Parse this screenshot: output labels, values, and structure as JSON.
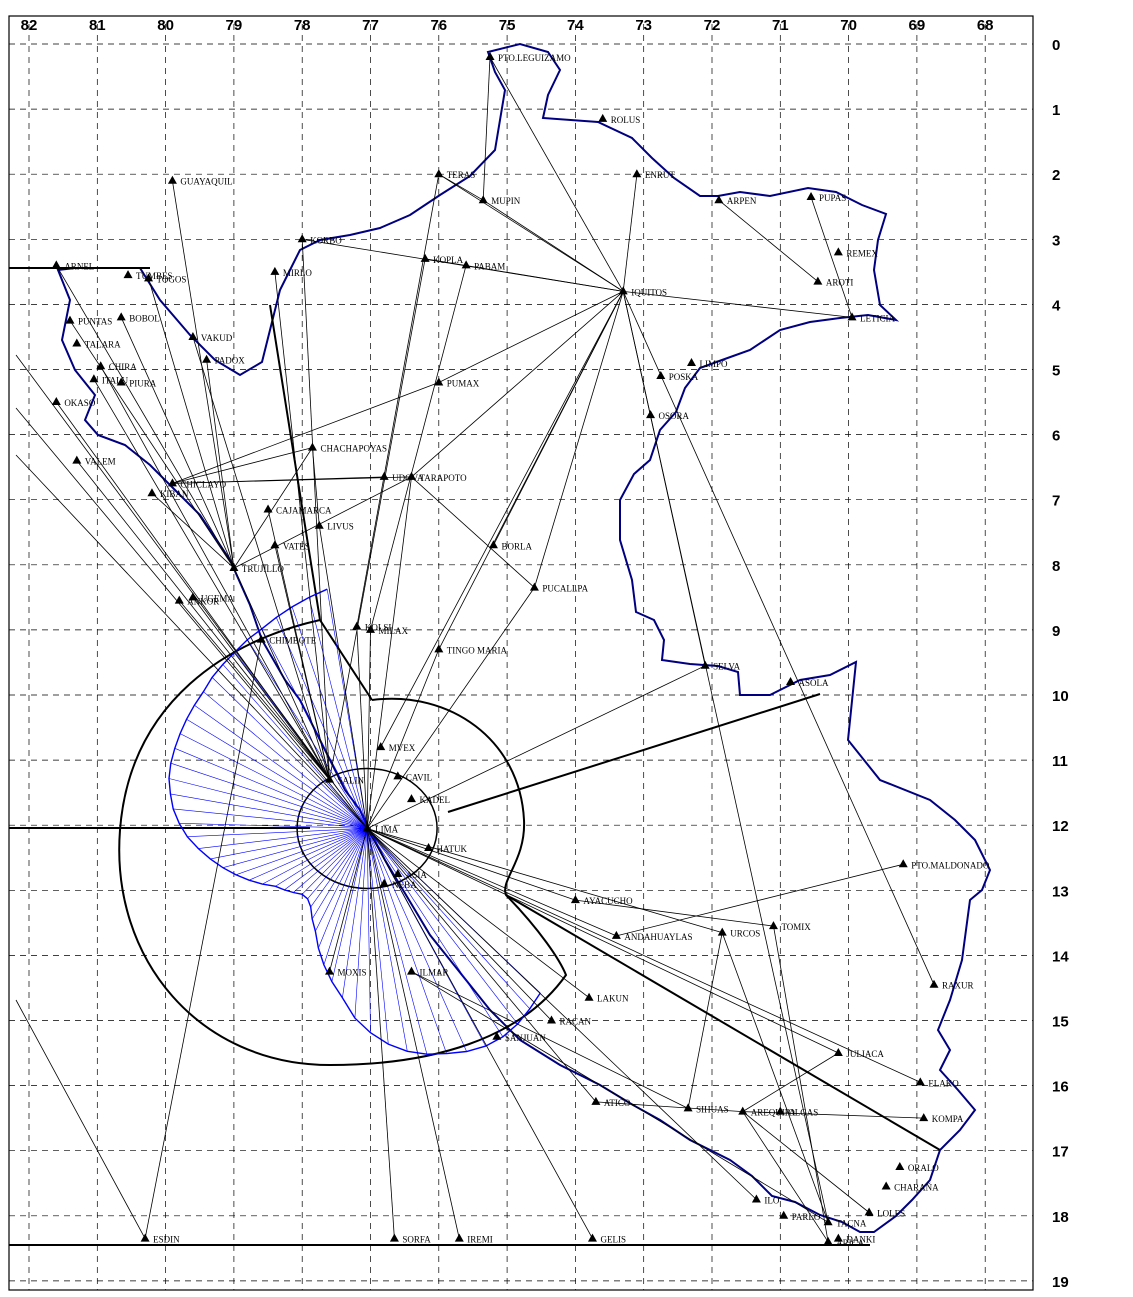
{
  "map": {
    "lon_axis": {
      "labels": [
        "82",
        "81",
        "80",
        "79",
        "78",
        "77",
        "76",
        "75",
        "74",
        "73",
        "72",
        "71",
        "70",
        "69",
        "68"
      ],
      "range": [
        82,
        68
      ]
    },
    "lat_axis": {
      "labels": [
        "0",
        "1",
        "2",
        "3",
        "4",
        "5",
        "6",
        "7",
        "8",
        "9",
        "10",
        "11",
        "12",
        "13",
        "14",
        "15",
        "16",
        "17",
        "18",
        "19"
      ],
      "range": [
        0,
        19
      ]
    },
    "grid": true,
    "colors": {
      "border": "#000080",
      "rose": "#0000ff",
      "lines": "#000000",
      "grid": "#000000"
    },
    "hub": "LIMA",
    "stations": [
      {
        "name": "PTO.LEGUIZAMO",
        "lon": 75.25,
        "lat": 0.2
      },
      {
        "name": "ROLUS",
        "lon": 73.6,
        "lat": 1.15
      },
      {
        "name": "TERAS",
        "lon": 76.0,
        "lat": 2.0
      },
      {
        "name": "MUPIN",
        "lon": 75.35,
        "lat": 2.4
      },
      {
        "name": "ENRUT",
        "lon": 73.1,
        "lat": 2.0
      },
      {
        "name": "ARPEN",
        "lon": 71.9,
        "lat": 2.4
      },
      {
        "name": "PUPAS",
        "lon": 70.55,
        "lat": 2.35
      },
      {
        "name": "GUAYAQUIL",
        "lon": 79.9,
        "lat": 2.1
      },
      {
        "name": "KORBO",
        "lon": 78.0,
        "lat": 3.0
      },
      {
        "name": "KOPLA",
        "lon": 76.2,
        "lat": 3.3
      },
      {
        "name": "PABAM",
        "lon": 75.6,
        "lat": 3.4
      },
      {
        "name": "REMEX",
        "lon": 70.15,
        "lat": 3.2
      },
      {
        "name": "AROTI",
        "lon": 70.45,
        "lat": 3.65
      },
      {
        "name": "IQUITOS",
        "lon": 73.3,
        "lat": 3.8
      },
      {
        "name": "LETICIA",
        "lon": 69.95,
        "lat": 4.2
      },
      {
        "name": "ARNEL",
        "lon": 81.6,
        "lat": 3.4
      },
      {
        "name": "TUMBES",
        "lon": 80.55,
        "lat": 3.55
      },
      {
        "name": "TOGOS",
        "lon": 80.25,
        "lat": 3.6
      },
      {
        "name": "MIRLO",
        "lon": 78.4,
        "lat": 3.5
      },
      {
        "name": "PUNTAS",
        "lon": 81.4,
        "lat": 4.25
      },
      {
        "name": "BOBOL",
        "lon": 80.65,
        "lat": 4.2
      },
      {
        "name": "VAKUD",
        "lon": 79.6,
        "lat": 4.5
      },
      {
        "name": "TALARA",
        "lon": 81.3,
        "lat": 4.6
      },
      {
        "name": "CHIRA",
        "lon": 80.95,
        "lat": 4.95
      },
      {
        "name": "PADOX",
        "lon": 79.4,
        "lat": 4.85
      },
      {
        "name": "LIMPO",
        "lon": 72.3,
        "lat": 4.9
      },
      {
        "name": "PIURA",
        "lon": 80.65,
        "lat": 5.2
      },
      {
        "name": "POSKA",
        "lon": 72.75,
        "lat": 5.1
      },
      {
        "name": "PUMAX",
        "lon": 76.0,
        "lat": 5.2
      },
      {
        "name": "OKASO",
        "lon": 81.6,
        "lat": 5.5
      },
      {
        "name": "ITALU",
        "lon": 81.05,
        "lat": 5.15
      },
      {
        "name": "OSORA",
        "lon": 72.9,
        "lat": 5.7
      },
      {
        "name": "CHACHAPOYAS",
        "lon": 77.85,
        "lat": 6.2
      },
      {
        "name": "VALEM",
        "lon": 81.3,
        "lat": 6.4
      },
      {
        "name": "UDOVA",
        "lon": 76.8,
        "lat": 6.65
      },
      {
        "name": "TARAPOTO",
        "lon": 76.4,
        "lat": 6.65
      },
      {
        "name": "CHICLAYO",
        "lon": 79.9,
        "lat": 6.75
      },
      {
        "name": "KIBAN",
        "lon": 80.2,
        "lat": 6.9
      },
      {
        "name": "CAJAMARCA",
        "lon": 78.5,
        "lat": 7.15
      },
      {
        "name": "LIVUS",
        "lon": 77.75,
        "lat": 7.4
      },
      {
        "name": "BORLA",
        "lon": 75.2,
        "lat": 7.7
      },
      {
        "name": "VATES",
        "lon": 78.4,
        "lat": 7.7
      },
      {
        "name": "TRUJILLO",
        "lon": 79.0,
        "lat": 8.05
      },
      {
        "name": "PUCALLPA",
        "lon": 74.6,
        "lat": 8.35
      },
      {
        "name": "UGEMA",
        "lon": 79.6,
        "lat": 8.5
      },
      {
        "name": "ANKOR",
        "lon": 79.8,
        "lat": 8.55
      },
      {
        "name": "KOLSI",
        "lon": 77.2,
        "lat": 8.95
      },
      {
        "name": "MILAX",
        "lon": 77.0,
        "lat": 9.0
      },
      {
        "name": "CHIMBOTE",
        "lon": 78.6,
        "lat": 9.15
      },
      {
        "name": "TINGO MARIA",
        "lon": 76.0,
        "lat": 9.3
      },
      {
        "name": "SELVA",
        "lon": 72.1,
        "lat": 9.55
      },
      {
        "name": "ASOLA",
        "lon": 70.85,
        "lat": 9.8
      },
      {
        "name": "MVEX",
        "lon": 76.85,
        "lat": 10.8
      },
      {
        "name": "SALIN",
        "lon": 77.6,
        "lat": 11.3
      },
      {
        "name": "CAVIL",
        "lon": 76.6,
        "lat": 11.25
      },
      {
        "name": "KADEL",
        "lon": 76.4,
        "lat": 11.6
      },
      {
        "name": "LIMA",
        "lon": 77.05,
        "lat": 12.05
      },
      {
        "name": "HATUK",
        "lon": 76.15,
        "lat": 12.35
      },
      {
        "name": "ASIA",
        "lon": 76.6,
        "lat": 12.75
      },
      {
        "name": "NEBA",
        "lon": 76.8,
        "lat": 12.9
      },
      {
        "name": "AYACUCHO",
        "lon": 74.0,
        "lat": 13.15
      },
      {
        "name": "ANDAHUAYLAS",
        "lon": 73.4,
        "lat": 13.7
      },
      {
        "name": "URCOS",
        "lon": 71.85,
        "lat": 13.65
      },
      {
        "name": "TOMIX",
        "lon": 71.1,
        "lat": 13.55
      },
      {
        "name": "PTO.MALDONADO",
        "lon": 69.2,
        "lat": 12.6
      },
      {
        "name": "MOXIS",
        "lon": 77.6,
        "lat": 14.25
      },
      {
        "name": "ILMAR",
        "lon": 76.4,
        "lat": 14.25
      },
      {
        "name": "RAXUR",
        "lon": 68.75,
        "lat": 14.45
      },
      {
        "name": "LAKUN",
        "lon": 73.8,
        "lat": 14.65
      },
      {
        "name": "RACAN",
        "lon": 74.35,
        "lat": 15.0
      },
      {
        "name": "SANJUAN",
        "lon": 75.15,
        "lat": 15.25
      },
      {
        "name": "JULIACA",
        "lon": 70.15,
        "lat": 15.5
      },
      {
        "name": "ELAKO",
        "lon": 68.95,
        "lat": 15.95
      },
      {
        "name": "ATICO",
        "lon": 73.7,
        "lat": 16.25
      },
      {
        "name": "SIHUAS",
        "lon": 72.35,
        "lat": 16.35
      },
      {
        "name": "AREQUIPA",
        "lon": 71.55,
        "lat": 16.4
      },
      {
        "name": "OLGAS",
        "lon": 71.0,
        "lat": 16.4
      },
      {
        "name": "KOMPA",
        "lon": 68.9,
        "lat": 16.5
      },
      {
        "name": "ORALO",
        "lon": 69.25,
        "lat": 17.25
      },
      {
        "name": "CHARAÑA",
        "lon": 69.45,
        "lat": 17.55
      },
      {
        "name": "ILO",
        "lon": 71.35,
        "lat": 17.75
      },
      {
        "name": "LOLES",
        "lon": 69.7,
        "lat": 17.95
      },
      {
        "name": "PARLO",
        "lon": 70.95,
        "lat": 18.0
      },
      {
        "name": "TACNA",
        "lon": 70.3,
        "lat": 18.1
      },
      {
        "name": "ARICA",
        "lon": 70.3,
        "lat": 18.4
      },
      {
        "name": "DANKI",
        "lon": 70.15,
        "lat": 18.35
      },
      {
        "name": "ESDIN",
        "lon": 80.3,
        "lat": 18.35
      },
      {
        "name": "SORFA",
        "lon": 76.65,
        "lat": 18.35
      },
      {
        "name": "IREMI",
        "lon": 75.7,
        "lat": 18.35
      },
      {
        "name": "GELIS",
        "lon": 73.75,
        "lat": 18.35
      }
    ],
    "links": [
      [
        "IQUITOS",
        "PTO.LEGUIZAMO"
      ],
      [
        "IQUITOS",
        "TERAS"
      ],
      [
        "IQUITOS",
        "KOPLA"
      ],
      [
        "IQUITOS",
        "LETICIA"
      ],
      [
        "IQUITOS",
        "PUMAX"
      ],
      [
        "IQUITOS",
        "TARAPOTO"
      ],
      [
        "IQUITOS",
        "PUCALLPA"
      ],
      [
        "IQUITOS",
        "TINGO MARIA"
      ],
      [
        "IQUITOS",
        "MVEX"
      ],
      [
        "IQUITOS",
        "BORLA"
      ],
      [
        "IQUITOS",
        "SELVA"
      ],
      [
        "IQUITOS",
        "TACNA"
      ],
      [
        "IQUITOS",
        "ENRUT"
      ],
      [
        "IQUITOS",
        "MUPIN"
      ],
      [
        "IQUITOS",
        "RAXUR"
      ],
      [
        "KORBO",
        "IQUITOS"
      ],
      [
        "ARPEN",
        "AROTI"
      ],
      [
        "PUPAS",
        "LETICIA"
      ],
      [
        "MUPIN",
        "TERAS"
      ],
      [
        "TERAS",
        "KOLSI"
      ],
      [
        "PTO.LEGUIZAMO",
        "MUPIN"
      ],
      [
        "PABAM",
        "MILAX"
      ],
      [
        "CHICLAYO",
        "CHACHAPOYAS"
      ],
      [
        "CHICLAYO",
        "UDOVA"
      ],
      [
        "CHICLAYO",
        "PUMAX"
      ],
      [
        "CHICLAYO",
        "TARAPOTO"
      ],
      [
        "TARAPOTO",
        "PUCALLPA"
      ],
      [
        "TRUJILLO",
        "CHACHAPOYAS"
      ],
      [
        "TRUJILLO",
        "TARAPOTO"
      ],
      [
        "TRUJILLO",
        "GUAYAQUIL"
      ],
      [
        "TRUJILLO",
        "TOGOS"
      ],
      [
        "TRUJILLO",
        "PUNTAS"
      ],
      [
        "TRUJILLO",
        "ARNEL"
      ],
      [
        "TRUJILLO",
        "KIBAN"
      ],
      [
        "TRUJILLO",
        "PADOX"
      ],
      [
        "CHACHAPOYAS",
        "LIVUS"
      ],
      [
        "SALIN",
        "VAKUD"
      ],
      [
        "SALIN",
        "MIRLO"
      ],
      [
        "SALIN",
        "CAJAMARCA"
      ],
      [
        "SALIN",
        "CHIRA"
      ],
      [
        "SALIN",
        "BOBOL"
      ],
      [
        "SALIN",
        "VATES"
      ],
      [
        "SALIN",
        "ANKOR"
      ],
      [
        "SALIN",
        "VALEM"
      ],
      [
        "SALIN",
        "OKASO"
      ],
      [
        "SALIN",
        "KORBO"
      ],
      [
        "SALIN",
        "KOPLA"
      ],
      [
        "SALIN",
        "UGEMA"
      ],
      [
        "SALIN",
        "ITALU"
      ],
      [
        "LIMA",
        "TINGO MARIA"
      ],
      [
        "LIMA",
        "PUCALLPA"
      ],
      [
        "LIMA",
        "SELVA"
      ],
      [
        "LIMA",
        "MILAX"
      ],
      [
        "LIMA",
        "KOLSI"
      ],
      [
        "LIMA",
        "LIVUS"
      ],
      [
        "LIMA",
        "TARAPOTO"
      ],
      [
        "LIMA",
        "ANDAHUAYLAS"
      ],
      [
        "LIMA",
        "AYACUCHO"
      ],
      [
        "LIMA",
        "ELAKO"
      ],
      [
        "LIMA",
        "JULIACA"
      ],
      [
        "LIMA",
        "URCOS"
      ],
      [
        "LIMA",
        "LAKUN"
      ],
      [
        "LIMA",
        "RACAN"
      ],
      [
        "LIMA",
        "GELIS"
      ],
      [
        "LIMA",
        "IREMI"
      ],
      [
        "LIMA",
        "SORFA"
      ],
      [
        "LIMA",
        "MOXIS"
      ],
      [
        "LIMA",
        "ATICO"
      ],
      [
        "AYACUCHO",
        "TOMIX"
      ],
      [
        "ANDAHUAYLAS",
        "PTO.MALDONADO"
      ],
      [
        "URCOS",
        "SIHUAS"
      ],
      [
        "URCOS",
        "TACNA"
      ],
      [
        "TOMIX",
        "ARICA"
      ],
      [
        "JULIACA",
        "AREQUIPA"
      ],
      [
        "AREQUIPA",
        "KOMPA"
      ],
      [
        "AREQUIPA",
        "ARICA"
      ],
      [
        "AREQUIPA",
        "LOLES"
      ],
      [
        "ATICO",
        "AREQUIPA"
      ],
      [
        "SIHUAS",
        "ILMAR"
      ],
      [
        "ILO",
        "LIMA"
      ],
      [
        "ESDIN",
        "CHIMBOTE"
      ],
      [
        "ILMAR",
        "TACNA"
      ]
    ]
  }
}
